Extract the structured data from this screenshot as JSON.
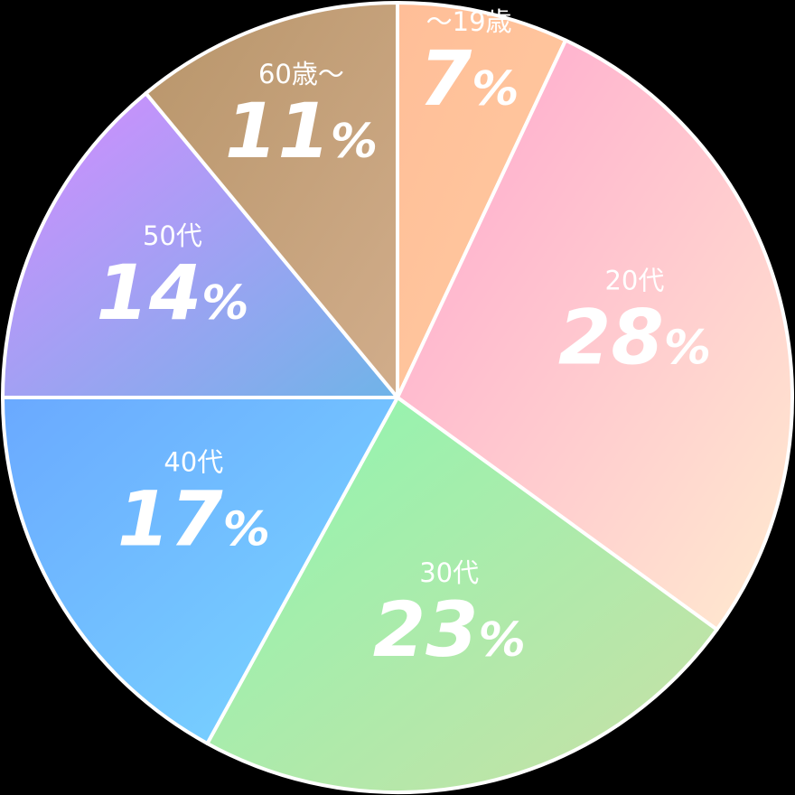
{
  "chart_data": {
    "type": "pie",
    "title": "",
    "unit": "%",
    "start_angle_deg": 0,
    "direction": "clockwise",
    "slices": [
      {
        "label": "～19歳",
        "value": 7,
        "colors": [
          "#ffbe98",
          "#ffcaa0"
        ]
      },
      {
        "label": "20代",
        "value": 28,
        "colors": [
          "#ffa6cf",
          "#ffebcf"
        ]
      },
      {
        "label": "30代",
        "value": 23,
        "colors": [
          "#8ef6b0",
          "#c9e0a6"
        ]
      },
      {
        "label": "40代",
        "value": 17,
        "colors": [
          "#6aa9ff",
          "#7ad8ff"
        ]
      },
      {
        "label": "50代",
        "value": 14,
        "colors": [
          "#d68cff",
          "#6fb4e8"
        ]
      },
      {
        "label": "60歳～",
        "value": 11,
        "colors": [
          "#b8956a",
          "#d1ad8b"
        ]
      }
    ]
  }
}
